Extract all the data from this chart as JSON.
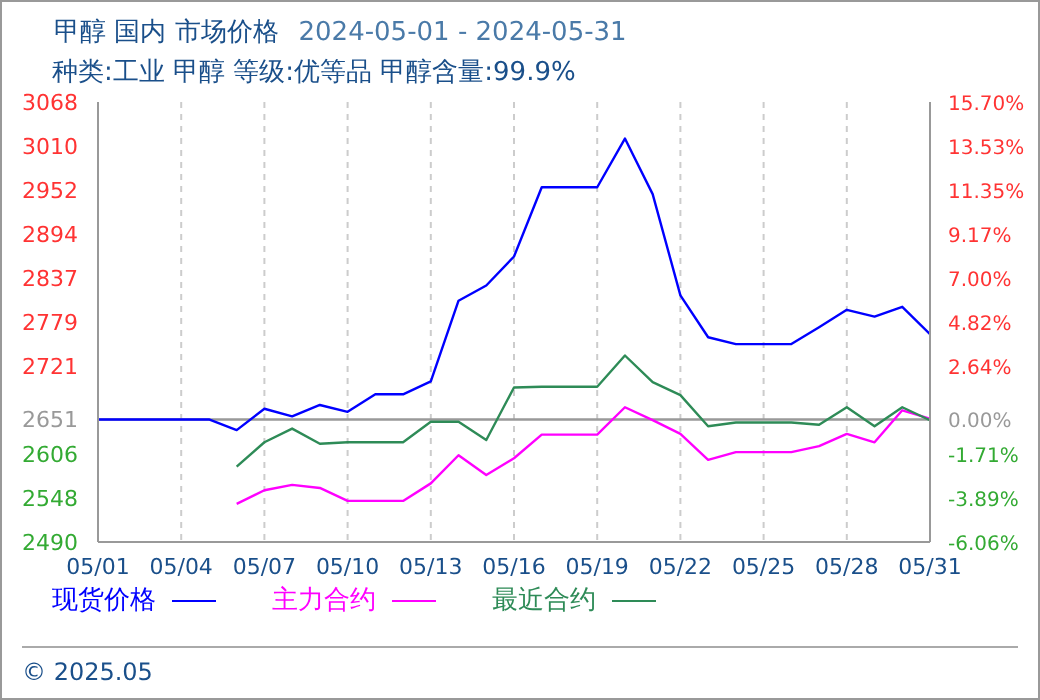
{
  "chart_data": {
    "type": "line",
    "title": "甲醇 国内 市场价格",
    "subtitle": "2024-05-01 - 2024-05-31",
    "annotations": [
      "种类:工业 甲醇 等级:优等品 甲醇含量:99.9%",
      "© 2025.05"
    ],
    "categories": [
      "05/01",
      null,
      null,
      "05/04",
      null,
      null,
      "05/07",
      null,
      null,
      "05/10",
      null,
      null,
      "05/13",
      null,
      null,
      "05/16",
      null,
      null,
      "05/19",
      null,
      null,
      "05/22",
      null,
      null,
      "05/25",
      null,
      null,
      "05/28",
      null,
      null,
      "05/31"
    ],
    "series": [
      {
        "name": "现货价格",
        "color": "#0000ff",
        "values": [
          2651,
          2651,
          2651,
          2651,
          2651,
          2637,
          2665,
          2655,
          2670,
          2661,
          2684,
          2684,
          2701,
          2807,
          2827,
          2865,
          2956,
          2956,
          2956,
          3020,
          2947,
          2814,
          2759,
          2750,
          2750,
          2750,
          2772,
          2795,
          2786,
          2799,
          2763
        ]
      },
      {
        "name": "主力合约",
        "color": "#ff00ff",
        "values": [
          null,
          null,
          null,
          null,
          null,
          2540,
          2558,
          2565,
          2561,
          2544,
          2544,
          2544,
          2567,
          2604,
          2578,
          2600,
          2631,
          2631,
          2631,
          2667,
          2650,
          2632,
          2598,
          2608,
          2608,
          2608,
          2616,
          2632,
          2621,
          2663,
          2652
        ]
      },
      {
        "name": "最近合约",
        "color": "#2e8b57",
        "values": [
          null,
          null,
          null,
          null,
          null,
          2589,
          2621,
          2639,
          2619,
          2621,
          2621,
          2621,
          2648,
          2648,
          2624,
          2693,
          2694,
          2694,
          2694,
          2735,
          2700,
          2683,
          2642,
          2647,
          2647,
          2647,
          2644,
          2667,
          2642,
          2667,
          2650
        ]
      }
    ],
    "ylim": [
      2490,
      3068
    ],
    "yticks": [
      2490,
      2548,
      2606,
      2651,
      2721,
      2779,
      2837,
      2894,
      2952,
      3010,
      3068
    ],
    "y2lim": [
      -6.06,
      15.7
    ],
    "y2ticks": [
      {
        "value": -6.06,
        "label": "-6.06%"
      },
      {
        "value": -3.89,
        "label": "-3.89%"
      },
      {
        "value": -1.71,
        "label": "-1.71%"
      },
      {
        "value": 0,
        "label": "0.00%"
      },
      {
        "value": 2.64,
        "label": "2.64%"
      },
      {
        "value": 4.82,
        "label": "4.82%"
      },
      {
        "value": 7.0,
        "label": "7.00%"
      },
      {
        "value": 9.17,
        "label": "9.17%"
      },
      {
        "value": 11.35,
        "label": "11.35%"
      },
      {
        "value": 13.53,
        "label": "13.53%"
      },
      {
        "value": 15.7,
        "label": "15.70%"
      }
    ],
    "ref_lines": [
      {
        "axis": "y",
        "value": 2651,
        "color": "#999999"
      }
    ],
    "grid": true,
    "legend": "bottom",
    "marker": "none",
    "line_style": "solid"
  }
}
